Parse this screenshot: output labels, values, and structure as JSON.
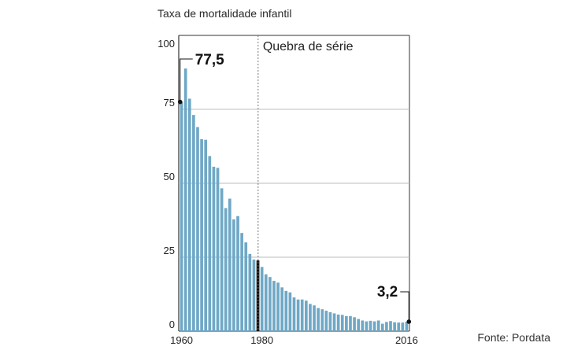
{
  "chart_data": {
    "type": "bar",
    "title": "Taxa de mortalidade infantil",
    "source": "Fonte: Pordata",
    "x": [
      1960,
      1961,
      1962,
      1963,
      1964,
      1965,
      1966,
      1967,
      1968,
      1969,
      1970,
      1971,
      1972,
      1973,
      1974,
      1975,
      1976,
      1977,
      1978,
      1979,
      1980,
      1981,
      1982,
      1983,
      1984,
      1985,
      1986,
      1987,
      1988,
      1989,
      1990,
      1991,
      1992,
      1993,
      1994,
      1995,
      1996,
      1997,
      1998,
      1999,
      2000,
      2001,
      2002,
      2003,
      2004,
      2005,
      2006,
      2007,
      2008,
      2009,
      2010,
      2011,
      2012,
      2013,
      2014,
      2015,
      2016
    ],
    "values": [
      77.5,
      88.8,
      78.6,
      73.1,
      69.0,
      64.9,
      64.7,
      59.2,
      55.6,
      55.2,
      48.3,
      41.6,
      44.8,
      37.8,
      38.9,
      33.2,
      30.0,
      26.1,
      24.2,
      23.9,
      21.7,
      19.2,
      18.3,
      17.0,
      16.4,
      14.8,
      13.6,
      13.1,
      11.4,
      10.7,
      10.7,
      10.3,
      9.2,
      8.7,
      7.8,
      7.4,
      6.9,
      6.4,
      6.0,
      5.6,
      5.5,
      5.1,
      5.1,
      4.7,
      4.1,
      3.6,
      3.3,
      3.5,
      3.3,
      3.6,
      2.5,
      3.1,
      3.4,
      3.0,
      2.9,
      2.9,
      3.2
    ],
    "highlight_year": 1979,
    "break_label": "Quebra de série",
    "x_tick_labels": [
      "1960",
      "1980",
      "2016"
    ],
    "y_ticks": [
      0,
      25,
      50,
      75,
      100
    ],
    "y_tick_labels": [
      "0",
      "25",
      "50",
      "75",
      "100"
    ],
    "ylim": [
      0,
      100
    ],
    "grid": true,
    "annotations": [
      {
        "year": 1960,
        "value": 77.5,
        "label": "77,5"
      },
      {
        "year": 2016,
        "value": 3.2,
        "label": "3,2"
      }
    ],
    "colors": {
      "bar": "#6fa8c6",
      "highlight": "#111111",
      "grid": "#bdbdbd",
      "frame": "#333333"
    }
  }
}
